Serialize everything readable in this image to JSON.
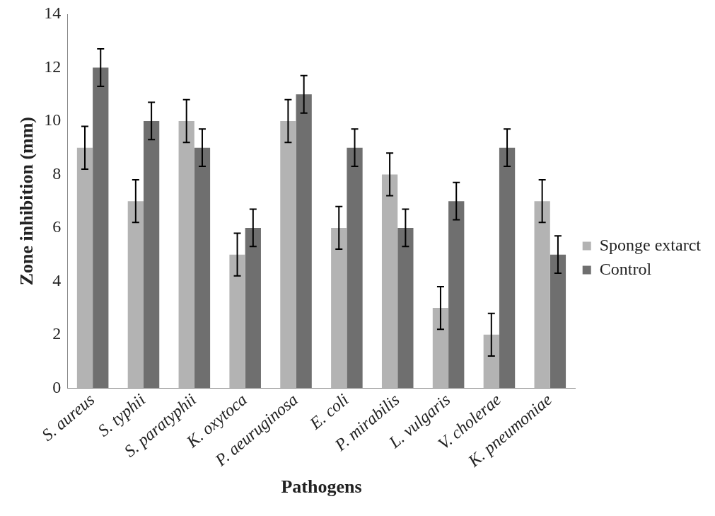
{
  "chart_data": {
    "type": "bar",
    "xlabel": "Pathogens",
    "ylabel": "Zone inhibition (mm)",
    "categories": [
      "S. aureus",
      "S. typhii",
      "S. paratyphii",
      "K. oxytoca",
      "P. aeuruginosa",
      "E. coli",
      "P. mirabilis",
      "L. vulgaris",
      "V. cholerae",
      "K. pneumoniae"
    ],
    "series": [
      {
        "name": "Sponge extarct",
        "color": "#b3b3b3",
        "values": [
          9,
          7,
          10,
          5,
          10,
          6,
          8,
          3,
          2,
          7
        ],
        "errors": [
          0.8,
          0.8,
          0.8,
          0.8,
          0.8,
          0.8,
          0.8,
          0.8,
          0.8,
          0.8
        ]
      },
      {
        "name": "Control",
        "color": "#6f6f6f",
        "values": [
          12,
          10,
          9,
          6,
          11,
          9,
          6,
          7,
          9,
          5
        ],
        "errors": [
          0.7,
          0.7,
          0.7,
          0.7,
          0.7,
          0.7,
          0.7,
          0.7,
          0.7,
          0.7
        ]
      }
    ],
    "ylim": [
      0,
      14
    ],
    "yticks": [
      0,
      2,
      4,
      6,
      8,
      10,
      12,
      14
    ],
    "grid": false,
    "legend": "right"
  }
}
